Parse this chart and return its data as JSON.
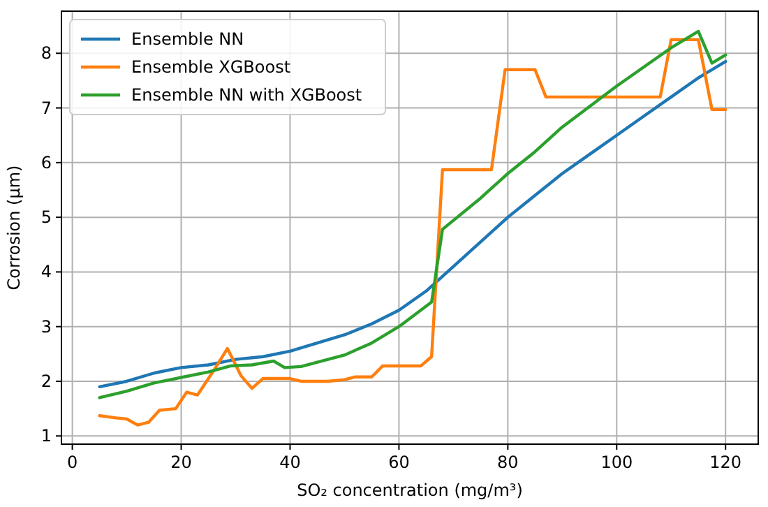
{
  "chart_data": {
    "type": "line",
    "xlabel": "SO₂ concentration (mg/m³)",
    "ylabel": "Corrosion (μm)",
    "xlim": [
      -2,
      126
    ],
    "ylim": [
      0.85,
      8.77
    ],
    "xticks": [
      0,
      20,
      40,
      60,
      80,
      100,
      120
    ],
    "yticks": [
      1,
      2,
      3,
      4,
      5,
      6,
      7,
      8
    ],
    "grid": true,
    "legend": "top left",
    "line_style": "solid",
    "marker": "none",
    "series": [
      {
        "name": "Ensemble NN",
        "color": "#1f77b4",
        "x": [
          5,
          10,
          15,
          20,
          25,
          30,
          35,
          40,
          45,
          50,
          55,
          60,
          65,
          70,
          75,
          80,
          85,
          90,
          95,
          100,
          105,
          110,
          115,
          120
        ],
        "values": [
          1.9,
          2.0,
          2.15,
          2.25,
          2.3,
          2.4,
          2.45,
          2.55,
          2.7,
          2.85,
          3.05,
          3.3,
          3.65,
          4.1,
          4.55,
          5.0,
          5.4,
          5.8,
          6.15,
          6.5,
          6.85,
          7.2,
          7.55,
          7.85
        ]
      },
      {
        "name": "Ensemble XGBoost",
        "color": "#ff7f0e",
        "x": [
          5,
          8,
          10,
          12,
          14,
          16,
          19,
          21,
          23,
          26,
          28.5,
          31,
          33,
          35,
          40,
          42,
          47,
          50,
          52,
          55,
          57,
          64,
          66,
          68,
          77,
          79.5,
          85,
          87,
          108,
          110,
          115,
          117.5,
          120
        ],
        "values": [
          1.37,
          1.33,
          1.31,
          1.2,
          1.25,
          1.47,
          1.5,
          1.8,
          1.75,
          2.2,
          2.6,
          2.1,
          1.87,
          2.05,
          2.05,
          2.0,
          2.0,
          2.03,
          2.08,
          2.08,
          2.28,
          2.28,
          2.45,
          5.87,
          5.87,
          7.7,
          7.7,
          7.2,
          7.2,
          8.25,
          8.25,
          6.97,
          6.97
        ]
      },
      {
        "name": "Ensemble NN with XGBoost",
        "color": "#2ca02c",
        "x": [
          5,
          10,
          15,
          20,
          25,
          29,
          33,
          37,
          39,
          42,
          50,
          55,
          60,
          66,
          68,
          75,
          80,
          85,
          90,
          100,
          110,
          115,
          117.5,
          120
        ],
        "values": [
          1.7,
          1.82,
          1.97,
          2.07,
          2.17,
          2.28,
          2.3,
          2.37,
          2.25,
          2.27,
          2.48,
          2.7,
          3.0,
          3.45,
          4.78,
          5.35,
          5.8,
          6.2,
          6.65,
          7.4,
          8.1,
          8.4,
          7.82,
          7.97
        ]
      }
    ]
  }
}
